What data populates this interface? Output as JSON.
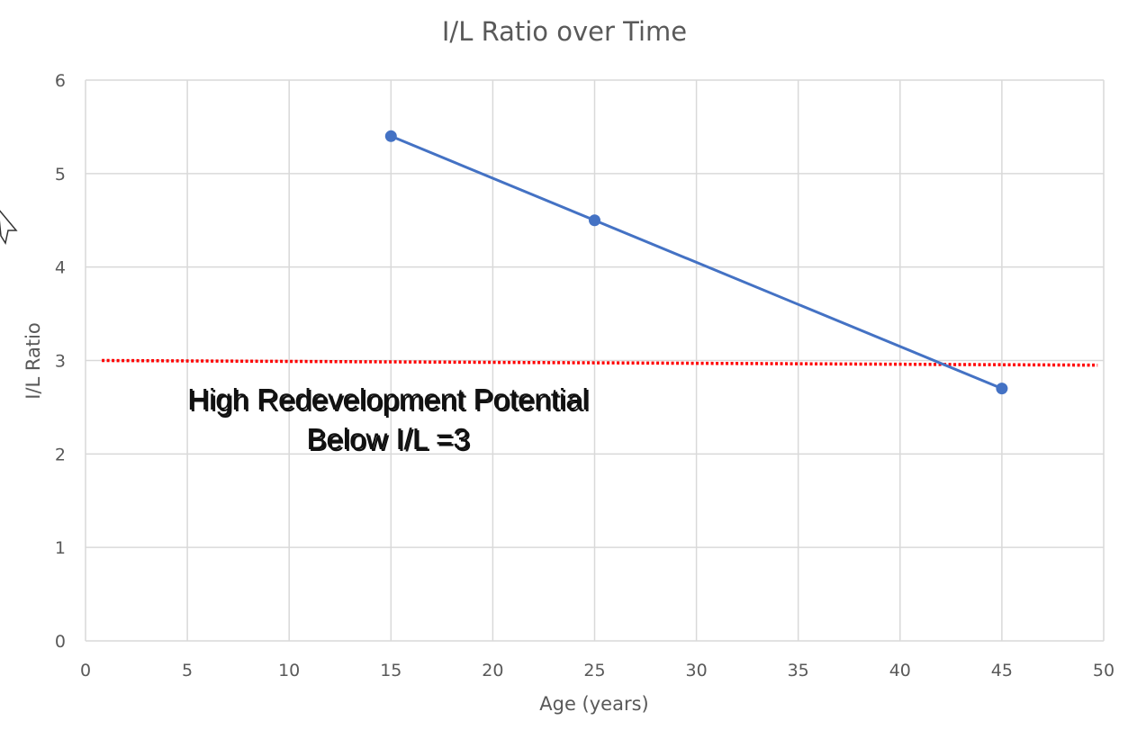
{
  "chart_data": {
    "type": "scatter",
    "title": "I/L Ratio over Time",
    "xlabel": "Age (years)",
    "ylabel": "I/L Ratio",
    "xlim": [
      0,
      50
    ],
    "ylim": [
      0,
      6
    ],
    "xticks": [
      0,
      5,
      10,
      15,
      20,
      25,
      30,
      35,
      40,
      45,
      50
    ],
    "yticks": [
      0,
      1,
      2,
      3,
      4,
      5,
      6
    ],
    "grid": true,
    "legend": "none",
    "series": [
      {
        "x": [
          15,
          25,
          45
        ],
        "y": [
          5.4,
          4.5,
          2.7
        ],
        "color": "#4472c4",
        "line": "solid",
        "markers": true
      }
    ],
    "reference_line": {
      "x": [
        0.8,
        49.7
      ],
      "y": [
        3.0,
        2.95
      ],
      "color": "#ff0000",
      "style": "dotted"
    },
    "annotation": {
      "lines": [
        "High Redevelopment Potential",
        "Below I/L =3"
      ],
      "x": 15,
      "y": 2.3
    }
  }
}
